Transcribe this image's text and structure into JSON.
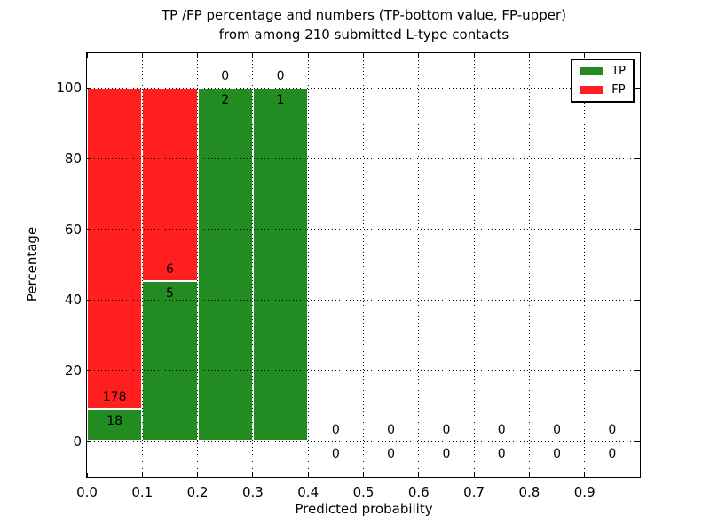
{
  "figure": {
    "title_line1": "TP /FP percentage and numbers (TP-bottom value, FP-upper)",
    "title_line2": "from among 210 submitted L-type contacts"
  },
  "chart_data": {
    "type": "bar",
    "stacked": true,
    "title": "TP /FP percentage and numbers (TP-bottom value, FP-upper)\nfrom among 210 submitted L-type contacts",
    "xlabel": "Predicted probability",
    "ylabel": "Percentage",
    "xlim": [
      0.0,
      1.0
    ],
    "ylim": [
      -11,
      110
    ],
    "x_ticks": [
      "0.0",
      "0.1",
      "0.2",
      "0.3",
      "0.4",
      "0.5",
      "0.6",
      "0.7",
      "0.8",
      "0.9"
    ],
    "y_ticks": [
      "0",
      "20",
      "40",
      "60",
      "80",
      "100"
    ],
    "y_tick_values": [
      0,
      20,
      40,
      60,
      80,
      100
    ],
    "grid": "dotted",
    "bin_edges": [
      0.0,
      0.1,
      0.2,
      0.3,
      0.4,
      0.5,
      0.6,
      0.7,
      0.8,
      0.9,
      1.0
    ],
    "total_contacts": 210,
    "series": [
      {
        "name": "TP",
        "color": "#228b22",
        "counts": [
          18,
          5,
          2,
          1,
          0,
          0,
          0,
          0,
          0,
          0
        ],
        "percent": [
          9.18,
          45.45,
          100.0,
          100.0,
          0,
          0,
          0,
          0,
          0,
          0
        ]
      },
      {
        "name": "FP",
        "color": "#ff1f1f",
        "counts": [
          178,
          6,
          0,
          0,
          0,
          0,
          0,
          0,
          0,
          0
        ],
        "percent": [
          90.82,
          54.55,
          0,
          0,
          0,
          0,
          0,
          0,
          0,
          0
        ]
      }
    ],
    "legend": {
      "position": "upper right",
      "entries": [
        "TP",
        "FP"
      ]
    }
  }
}
